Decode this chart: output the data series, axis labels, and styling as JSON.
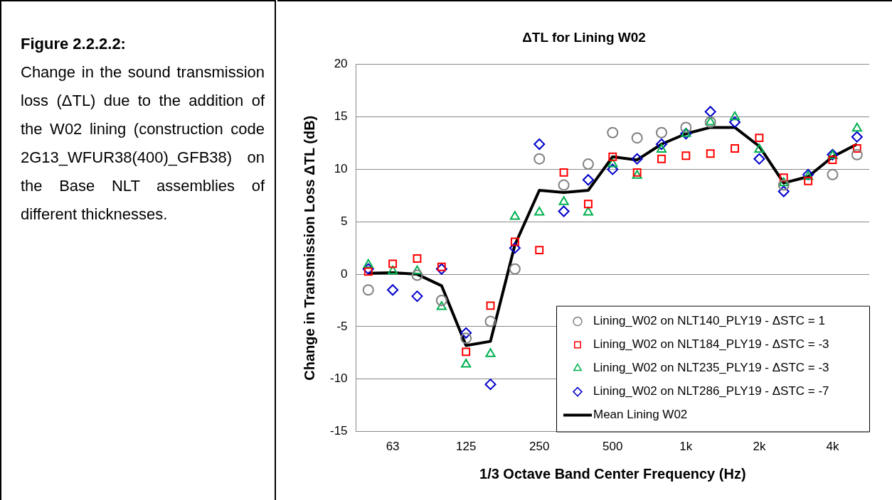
{
  "chart_data": {
    "type": "scatter",
    "title": "ΔTL for Lining W02",
    "xlabel": "1/3 Octave Band Center Frequency (Hz)",
    "ylabel": "Change in Transmission Loss ΔTL (dB)",
    "annotations": [
      "Figure 2.2.2.2:",
      "Change in the sound transmission loss (ΔTL) due to the addition of the W02 lining (construction code 2G13_WFUR38(400)_GFB38) on the Base NLT assemblies of different thicknesses."
    ],
    "categories": [
      null,
      "63",
      null,
      null,
      "125",
      null,
      null,
      "250",
      null,
      null,
      "500",
      null,
      null,
      "1k",
      null,
      null,
      "2k",
      null,
      null,
      "4k",
      null
    ],
    "ylim": [
      -15,
      20
    ],
    "yticks": [
      -15,
      -10,
      -5,
      0,
      5,
      10,
      15,
      20
    ],
    "grid": "y",
    "legend": "bottom right",
    "series": [
      {
        "name": "Lining_W02 on NLT140_PLY19 - ΔSTC = 1",
        "color": "#808080",
        "marker": "circle",
        "values": [
          -1.5,
          null,
          -0.1,
          -2.5,
          -6.1,
          -4.5,
          0.5,
          11.0,
          8.5,
          10.5,
          13.5,
          13.0,
          13.5,
          14.0,
          14.5,
          null,
          null,
          8.5,
          null,
          9.5,
          11.4
        ]
      },
      {
        "name": "Lining_W02 on NLT184_PLY19 - ΔSTC = -3",
        "color": "#ff0000",
        "marker": "square",
        "values": [
          0.25,
          1.0,
          1.5,
          0.7,
          -7.4,
          -3.0,
          3.1,
          2.3,
          9.7,
          6.7,
          11.2,
          9.7,
          11.0,
          11.3,
          11.5,
          12.0,
          13.0,
          9.2,
          8.9,
          10.9,
          12.0
        ]
      },
      {
        "name": "Lining_W02 on NLT235_PLY19 - ΔSTC = -3",
        "color": "#00b050",
        "marker": "triangle",
        "values": [
          0.9,
          0.3,
          0.3,
          -3.1,
          -8.6,
          -7.6,
          5.5,
          5.9,
          6.9,
          5.9,
          10.5,
          9.4,
          11.9,
          13.4,
          14.5,
          15.0,
          11.9,
          8.7,
          9.3,
          11.3,
          13.9
        ]
      },
      {
        "name": "Lining_W02 on NLT286_PLY19 - ΔSTC = -7",
        "color": "#0000cc",
        "marker": "diamond",
        "values": [
          0.5,
          -1.5,
          -2.1,
          0.5,
          -5.6,
          -10.5,
          2.5,
          12.4,
          6.0,
          9.0,
          10.0,
          11.0,
          12.4,
          13.4,
          15.5,
          14.5,
          11.0,
          7.9,
          9.5,
          11.4,
          13.1
        ]
      },
      {
        "name": "Mean Lining W02",
        "type": "line",
        "color": "#000000",
        "marker": "none",
        "line_style": "solid",
        "values": [
          0.1,
          0.15,
          0.0,
          -1.1,
          -6.8,
          -6.4,
          2.8,
          8.0,
          7.8,
          8.0,
          11.2,
          10.9,
          12.4,
          13.4,
          14.0,
          14.0,
          12.2,
          8.7,
          9.3,
          11.2,
          12.4
        ]
      }
    ]
  }
}
